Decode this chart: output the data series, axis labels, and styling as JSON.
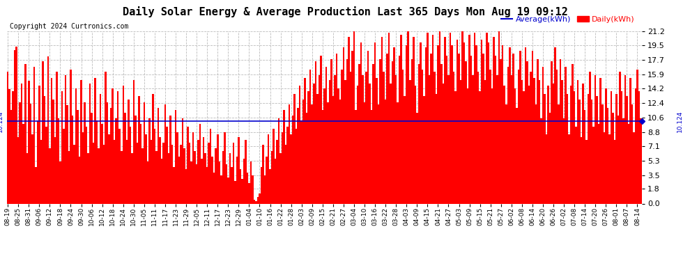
{
  "title": "Daily Solar Energy & Average Production Last 365 Days Mon Aug 19 09:12",
  "copyright": "Copyright 2024 Curtronics.com",
  "average_value": 10.124,
  "average_label": "10.124",
  "bar_color": "#ff0000",
  "average_color": "#0000cd",
  "avg_legend_label": "Average(kWh)",
  "daily_legend_label": "Daily(kWh)",
  "yticks": [
    0.0,
    1.8,
    3.5,
    5.3,
    7.1,
    8.8,
    10.6,
    12.4,
    14.2,
    15.9,
    17.7,
    19.5,
    21.2
  ],
  "ymax": 21.2,
  "ymin": 0.0,
  "background_color": "#ffffff",
  "grid_color": "#bbbbbb",
  "title_fontsize": 11,
  "bar_width": 1.0,
  "x_labels": [
    "08-19",
    "08-25",
    "08-31",
    "09-06",
    "09-12",
    "09-18",
    "09-24",
    "09-30",
    "10-06",
    "10-12",
    "10-18",
    "10-24",
    "10-30",
    "11-05",
    "11-11",
    "11-17",
    "11-23",
    "11-29",
    "12-05",
    "12-11",
    "12-17",
    "12-23",
    "12-29",
    "01-04",
    "01-10",
    "01-16",
    "01-22",
    "01-28",
    "02-03",
    "02-09",
    "02-15",
    "02-21",
    "02-27",
    "03-04",
    "03-10",
    "03-16",
    "03-22",
    "03-28",
    "04-03",
    "04-09",
    "04-15",
    "04-21",
    "04-27",
    "05-03",
    "05-09",
    "05-15",
    "05-21",
    "05-27",
    "06-02",
    "06-08",
    "06-14",
    "06-20",
    "06-26",
    "07-02",
    "07-08",
    "07-14",
    "07-20",
    "07-26",
    "08-01",
    "08-07",
    "08-14"
  ],
  "x_label_step": 6,
  "daily_values": [
    16.2,
    14.1,
    11.5,
    13.8,
    18.9,
    19.3,
    8.2,
    12.5,
    14.8,
    9.8,
    17.2,
    6.2,
    15.1,
    12.3,
    8.5,
    16.8,
    4.5,
    10.2,
    14.5,
    7.8,
    17.5,
    13.2,
    9.5,
    18.1,
    6.8,
    15.5,
    12.8,
    8.2,
    16.2,
    10.5,
    5.2,
    13.8,
    9.2,
    15.8,
    12.1,
    6.5,
    16.5,
    10.8,
    7.2,
    14.2,
    11.5,
    5.8,
    15.2,
    8.8,
    12.5,
    9.5,
    6.2,
    14.8,
    11.2,
    7.5,
    15.5,
    10.2,
    6.8,
    13.5,
    9.8,
    7.2,
    16.2,
    12.5,
    8.5,
    11.8,
    14.2,
    7.8,
    10.5,
    13.8,
    9.2,
    6.5,
    14.5,
    11.2,
    7.8,
    12.8,
    9.5,
    6.2,
    15.2,
    10.8,
    7.5,
    13.2,
    9.8,
    6.8,
    12.5,
    8.5,
    5.2,
    10.5,
    7.8,
    13.5,
    9.2,
    6.5,
    11.8,
    8.2,
    5.5,
    7.5,
    12.2,
    9.5,
    6.2,
    10.8,
    7.2,
    4.5,
    11.5,
    8.8,
    5.8,
    7.2,
    10.5,
    6.8,
    4.2,
    9.5,
    7.5,
    5.2,
    8.8,
    6.5,
    4.8,
    7.8,
    9.8,
    5.5,
    8.2,
    6.2,
    4.5,
    7.5,
    9.2,
    5.8,
    3.8,
    6.8,
    8.5,
    5.2,
    3.5,
    6.5,
    8.8,
    4.8,
    3.2,
    6.2,
    4.5,
    7.5,
    2.8,
    5.8,
    8.2,
    4.2,
    3.0,
    5.5,
    7.8,
    3.8,
    2.5,
    5.2,
    3.5,
    0.5,
    0.3,
    0.8,
    1.2,
    4.5,
    7.2,
    3.5,
    5.8,
    8.5,
    4.2,
    6.5,
    9.2,
    5.5,
    7.8,
    10.5,
    6.2,
    8.8,
    11.5,
    7.2,
    9.5,
    12.2,
    8.5,
    10.8,
    13.5,
    9.2,
    11.8,
    14.5,
    10.2,
    12.8,
    15.5,
    11.2,
    13.8,
    16.5,
    12.2,
    14.8,
    17.5,
    13.5,
    15.8,
    18.2,
    11.5,
    14.2,
    16.8,
    12.5,
    15.2,
    17.8,
    13.2,
    15.8,
    18.5,
    14.2,
    12.8,
    16.5,
    19.2,
    15.2,
    17.8,
    20.5,
    16.2,
    18.8,
    21.2,
    11.5,
    14.5,
    17.2,
    19.8,
    15.8,
    12.5,
    16.2,
    18.8,
    14.8,
    11.5,
    17.2,
    19.8,
    15.5,
    12.2,
    17.8,
    20.5,
    16.2,
    12.8,
    18.5,
    21.0,
    14.8,
    17.5,
    19.2,
    15.8,
    12.5,
    18.2,
    20.8,
    16.5,
    13.2,
    19.5,
    21.2,
    15.2,
    17.8,
    20.5,
    14.5,
    11.2,
    17.2,
    19.8,
    16.5,
    13.2,
    19.2,
    21.0,
    15.8,
    18.5,
    20.8,
    16.2,
    13.5,
    19.5,
    21.2,
    17.2,
    14.8,
    20.5,
    18.2,
    15.8,
    21.0,
    19.5,
    16.2,
    13.8,
    20.2,
    18.5,
    15.2,
    21.2,
    19.8,
    17.5,
    14.2,
    20.8,
    18.2,
    15.8,
    21.0,
    19.5,
    16.2,
    13.8,
    20.2,
    18.5,
    15.2,
    21.0,
    19.8,
    16.5,
    14.2,
    20.5,
    18.2,
    15.8,
    21.2,
    17.8,
    19.5,
    14.5,
    12.2,
    16.8,
    19.2,
    15.8,
    18.5,
    14.2,
    11.8,
    16.5,
    18.8,
    15.2,
    13.8,
    19.2,
    17.5,
    14.5,
    16.2,
    18.8,
    15.5,
    12.2,
    17.8,
    15.2,
    10.5,
    16.8,
    13.5,
    8.5,
    14.5,
    11.2,
    17.5,
    14.8,
    19.2,
    16.5,
    12.2,
    17.8,
    15.2,
    10.5,
    16.8,
    13.5,
    8.5,
    14.5,
    17.2,
    13.8,
    9.5,
    15.2,
    12.8,
    8.2,
    14.8,
    11.5,
    7.8,
    13.5,
    16.2,
    12.8,
    9.5,
    15.8,
    13.2,
    9.8,
    15.5,
    12.2,
    8.8,
    14.2,
    11.8,
    8.5,
    13.8,
    11.2,
    7.8,
    13.5,
    10.8,
    16.2,
    13.8,
    10.5,
    15.8,
    13.2,
    9.8,
    15.5,
    12.2,
    8.8,
    14.2,
    16.5,
    13.8,
    10.5
  ]
}
